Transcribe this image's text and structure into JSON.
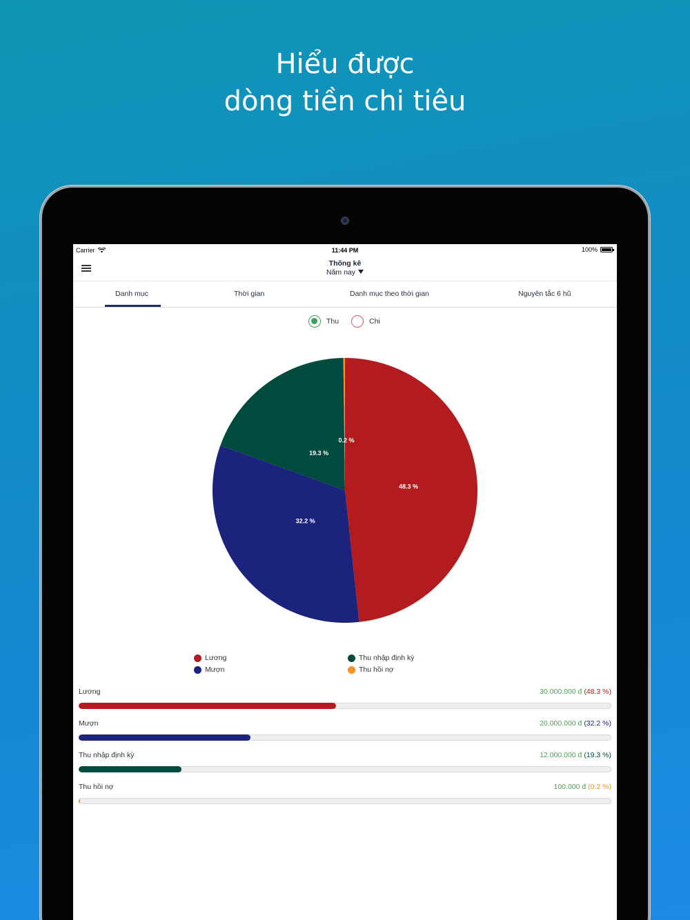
{
  "headline": {
    "line1": "Hiểu được",
    "line2": "dòng tiền chi tiêu"
  },
  "status_bar": {
    "carrier": "Carrier",
    "time": "11:44 PM",
    "battery": "100%"
  },
  "navbar": {
    "title": "Thống kê",
    "period": "Năm nay"
  },
  "tabs": [
    {
      "label": "Danh mục",
      "active": true
    },
    {
      "label": "Thời gian",
      "active": false
    },
    {
      "label": "Danh mục theo thời gian",
      "active": false
    },
    {
      "label": "Nguyên tắc 6 hũ",
      "active": false
    }
  ],
  "toggle": {
    "income_label": "Thu",
    "expense_label": "Chi",
    "selected": "Thu"
  },
  "chart_data": {
    "type": "pie",
    "slices": [
      {
        "label": "Lương",
        "value": 48.3,
        "display": "48.3 %",
        "color": "#b41b1e"
      },
      {
        "label": "Mượn",
        "value": 32.2,
        "display": "32.2 %",
        "color": "#1b237d"
      },
      {
        "label": "Thu nhập định kỳ",
        "value": 19.3,
        "display": "19.3 %",
        "color": "#004b3e"
      },
      {
        "label": "Thu hồi nợ",
        "value": 0.2,
        "display": "0.2 %",
        "color": "#f4922b"
      }
    ],
    "legend_placement": "bottom"
  },
  "breakdown": [
    {
      "label": "Lương",
      "amount": "30.000.000 đ",
      "percent": "(48.3 %)",
      "fraction": 0.483,
      "color": "#b41b1e"
    },
    {
      "label": "Mượn",
      "amount": "20.000.000 đ",
      "percent": "(32.2 %)",
      "fraction": 0.322,
      "color": "#1b237d"
    },
    {
      "label": "Thu nhập định kỳ",
      "amount": "12.000.000 đ",
      "percent": "(19.3 %)",
      "fraction": 0.193,
      "color": "#004b3e"
    },
    {
      "label": "Thu hồi nợ",
      "amount": "100.000 đ",
      "percent": "(0.2 %)",
      "fraction": 0.002,
      "color": "#f4922b"
    }
  ],
  "colors": {
    "amount_green": "#4aa34f",
    "tab_accent": "#1b2a7a"
  }
}
